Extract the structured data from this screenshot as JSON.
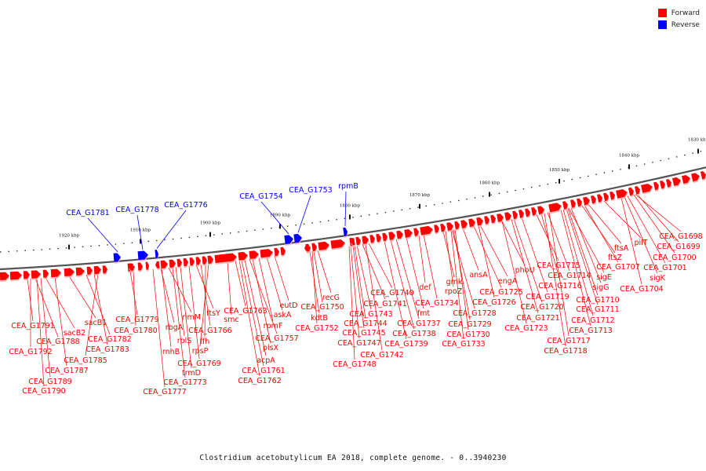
{
  "legend": {
    "forward_label": "Forward",
    "reverse_label": "Reverse",
    "forward_color": "#ff0000",
    "reverse_color": "#0000ff"
  },
  "caption": "Clostridium acetobutylicum EA 2018, complete genome. - 0..3940230",
  "ticks": [
    "1920 kbp",
    "1910 kbp",
    "1900 kbp",
    "1890 kbp",
    "1880 kbp",
    "1870 kbp",
    "1860 kbp",
    "1850 kbp",
    "1840 kbp",
    "1830 kbp"
  ],
  "reverse_genes": [
    "CEA_G1781",
    "CEA_G1778",
    "CEA_G1776",
    "CEA_G1754",
    "CEA_G1753",
    "rpmB"
  ],
  "forward_genes": [
    "CEA_G1791",
    "CEA_G1792",
    "CEA_G1788",
    "sacB2",
    "sacB1",
    "CEA_G1782",
    "CEA_G1783",
    "CEA_G1785",
    "CEA_G1787",
    "CEA_G1789",
    "CEA_G1790",
    "CEA_G1779",
    "CEA_G1780",
    "rbgA",
    "rimM",
    "rplS",
    "rnhB",
    "CEA_G1769",
    "trmD",
    "CEA_G1773",
    "CEA_G1777",
    "ftsY",
    "ffh",
    "rpsP",
    "CEA_G1766",
    "smc",
    "CEA_G1763",
    "rpmF",
    "acpA",
    "plsX",
    "CEA_G1757",
    "CEA_G1761",
    "CEA_G1762",
    "askA",
    "eutD",
    "recG",
    "CEA_G1750",
    "kdtB",
    "CEA_G1752",
    "CEA_G1740",
    "CEA_G1741",
    "CEA_G1743",
    "CEA_G1744",
    "CEA_G1745",
    "CEA_G1747",
    "CEA_G1748",
    "CEA_G1742",
    "CEA_G1739",
    "CEA_G1738",
    "CEA_G1737",
    "fmt",
    "def",
    "CEA_G1734",
    "gmk",
    "rpoZ",
    "CEA_G1728",
    "CEA_G1729",
    "CEA_G1730",
    "CEA_G1733",
    "ansA",
    "CEA_G1725",
    "CEA_G1726",
    "engA",
    "phoU",
    "CEA_G1720",
    "CEA_G1721",
    "CEA_G1723",
    "CEA_G1719",
    "CEA_G1715",
    "CEA_G1716",
    "CEA_G1714",
    "CEA_G1717",
    "CEA_G1718",
    "sigE",
    "sigG",
    "CEA_G1710",
    "CEA_G1711",
    "CEA_G1712",
    "CEA_G1713",
    "ftsZ",
    "ftsA",
    "CEA_G1707",
    "pilT",
    "CEA_G1704",
    "CEA_G1698",
    "CEA_G1699",
    "CEA_G1700",
    "CEA_G1701",
    "sigK"
  ]
}
